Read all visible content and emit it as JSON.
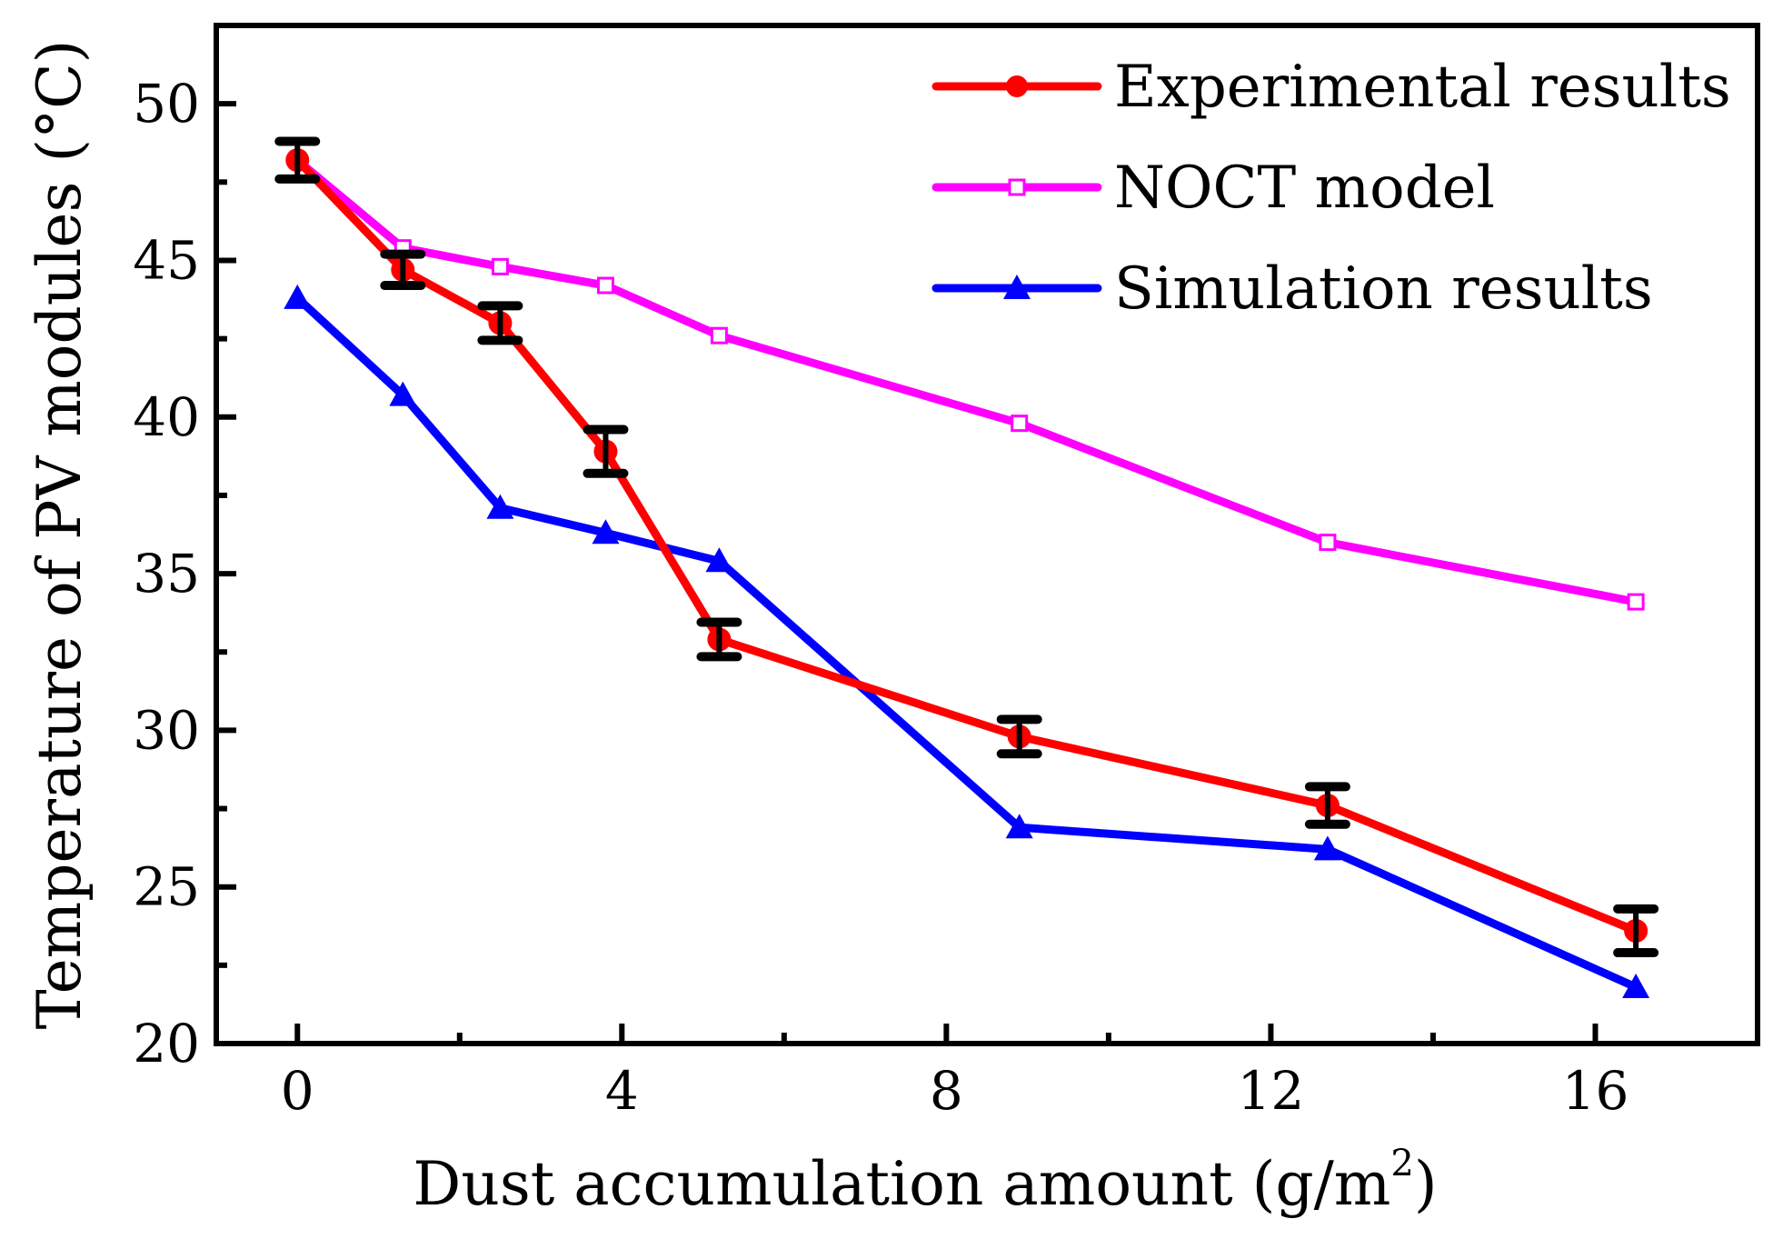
{
  "chart_data": {
    "type": "line",
    "xlabel": "Dust accumulation amount (g/m",
    "xlabel_superscript": "2",
    "xlabel_suffix": ")",
    "ylabel": "Temperature of PV modules (°C)",
    "xlim": [
      -1,
      18
    ],
    "ylim": [
      20,
      52.5
    ],
    "xticks": [
      0,
      4,
      8,
      12,
      16
    ],
    "yticks": [
      20,
      25,
      30,
      35,
      40,
      45,
      50
    ],
    "legend_position": "top-right",
    "series": [
      {
        "name": "Experimental results",
        "color": "#ff0000",
        "marker": "circle",
        "x": [
          0,
          1.3,
          2.5,
          3.8,
          5.2,
          8.9,
          12.7,
          16.5
        ],
        "y": [
          48.2,
          44.7,
          43.0,
          38.9,
          32.9,
          29.8,
          27.6,
          23.6
        ],
        "error": [
          0.6,
          0.5,
          0.55,
          0.7,
          0.55,
          0.55,
          0.6,
          0.7
        ]
      },
      {
        "name": "NOCT model",
        "color": "#ff00ff",
        "marker": "open-square",
        "x": [
          0,
          1.3,
          2.5,
          3.8,
          5.2,
          8.9,
          12.7,
          16.5
        ],
        "y": [
          48.2,
          45.4,
          44.8,
          44.2,
          42.6,
          39.8,
          36.0,
          34.1
        ]
      },
      {
        "name": "Simulation results",
        "color": "#0000ff",
        "marker": "triangle",
        "x": [
          0,
          1.3,
          2.5,
          3.8,
          5.2,
          8.9,
          12.7,
          16.5
        ],
        "y": [
          43.8,
          40.7,
          37.1,
          36.3,
          35.4,
          26.9,
          26.2,
          21.8
        ]
      }
    ]
  }
}
